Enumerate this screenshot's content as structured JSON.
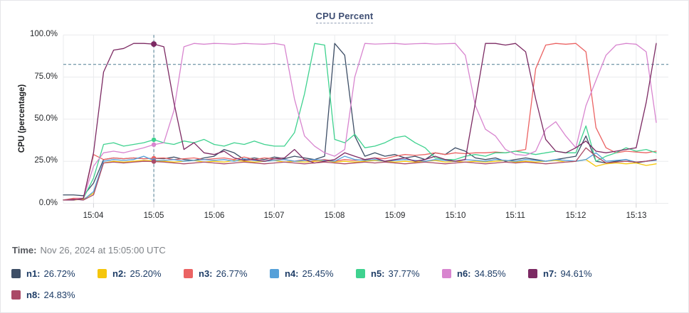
{
  "hover": {
    "label": "Time:",
    "value": "Nov 26, 2024 at 15:05:00 UTC"
  },
  "chart_data": {
    "type": "line",
    "title": "CPU Percent",
    "ylabel": "CPU (percentage)",
    "yticks": [
      "100.0%",
      "75.0%",
      "50.0%",
      "25.0%",
      "0.0%"
    ],
    "ytick_values": [
      100,
      75,
      50,
      25,
      0
    ],
    "xticks": [
      "15:04",
      "15:05",
      "15:06",
      "15:07",
      "15:08",
      "15:09",
      "15:10",
      "15:11",
      "15:12",
      "15:13"
    ],
    "ylim": [
      0,
      100
    ],
    "grid": true,
    "legend_position": "bottom",
    "x_start": "15:03:30",
    "x_end": "15:13:20",
    "x_step_seconds": 10,
    "threshold_percent": 82.5,
    "crosshair": {
      "time_label": "15:05",
      "index": 9
    },
    "series": [
      {
        "name": "n1",
        "hover_label": "n1:",
        "hover_value": "26.72%",
        "color": "#3d4e66",
        "values": [
          5,
          5,
          4.5,
          12,
          26,
          27,
          26.5,
          27,
          26.5,
          26.72,
          26.5,
          27.5,
          26,
          25.5,
          27,
          28,
          32,
          30,
          26,
          27,
          26,
          27.5,
          26.5,
          28,
          27,
          26,
          28,
          95,
          88,
          40,
          28,
          30,
          28,
          29,
          27,
          28,
          26,
          30,
          29,
          33,
          31,
          27,
          26,
          27,
          25,
          26,
          27,
          26,
          25,
          26,
          27,
          28,
          40,
          25,
          24,
          25,
          26,
          24,
          25,
          26
        ]
      },
      {
        "name": "n2",
        "hover_label": "n2:",
        "hover_value": "25.20%",
        "color": "#f5c60c",
        "values": [
          2,
          2,
          2.5,
          6,
          24,
          25,
          24.5,
          25,
          25.5,
          25.2,
          25,
          24.5,
          25,
          25.5,
          24.5,
          25,
          24.5,
          25.5,
          25,
          24.5,
          25,
          25.5,
          24.5,
          25,
          24.5,
          25,
          25.5,
          24.5,
          25,
          24.5,
          25,
          25.5,
          25,
          24.5,
          25,
          24.5,
          25,
          25.5,
          24.5,
          25,
          24.5,
          25,
          24.5,
          25,
          25.5,
          24.5,
          25,
          24.5,
          25,
          25.5,
          24.5,
          25,
          26,
          22,
          23.5,
          24,
          23.5,
          24,
          22.5,
          23.5
        ]
      },
      {
        "name": "n3",
        "hover_label": "n3:",
        "hover_value": "26.77%",
        "color": "#eb6363",
        "values": [
          2,
          3,
          3,
          29,
          26,
          27,
          26.5,
          27,
          26.5,
          26.77,
          27,
          26,
          26.5,
          27,
          26,
          26.5,
          27,
          26,
          27.5,
          26,
          27,
          26.5,
          26,
          25,
          26,
          25.5,
          26,
          25,
          26,
          25.5,
          26,
          27,
          26.5,
          28,
          29,
          28.5,
          29,
          30,
          29,
          30,
          29.5,
          30,
          30,
          30.5,
          30,
          31,
          32,
          80,
          94,
          95,
          94.5,
          95,
          90,
          45,
          33,
          30,
          31,
          30.5,
          30,
          31
        ]
      },
      {
        "name": "n4",
        "hover_label": "n4:",
        "hover_value": "25.45%",
        "color": "#55a0d9",
        "values": [
          2,
          2.5,
          2,
          7,
          25,
          26,
          25.5,
          26,
          28,
          25.45,
          25.5,
          26,
          25,
          25.5,
          26,
          25.5,
          26,
          25,
          26.5,
          25.5,
          25,
          25.5,
          26,
          25,
          25.5,
          26,
          25.5,
          25,
          28,
          26,
          25.5,
          26,
          25,
          25.5,
          26,
          25.5,
          25,
          26,
          25.5,
          25,
          26,
          25.5,
          25,
          26,
          25.5,
          25,
          26,
          25.5,
          25,
          26,
          25.5,
          25,
          26,
          30,
          25,
          25.5,
          26,
          24.5,
          25,
          25.5
        ]
      },
      {
        "name": "n5",
        "hover_label": "n5:",
        "hover_value": "37.77%",
        "color": "#3fd28f",
        "values": [
          2,
          2,
          3,
          15,
          35,
          36,
          34,
          35,
          36,
          37.77,
          36,
          35,
          37,
          36,
          38,
          35,
          34,
          36,
          35,
          37,
          35,
          34,
          34,
          42,
          65,
          95,
          94,
          38,
          36,
          41,
          33,
          34,
          36,
          39,
          40,
          36,
          33,
          27,
          26,
          26,
          28,
          29,
          28,
          30,
          30,
          31,
          30,
          29,
          30,
          31,
          30,
          30,
          46,
          25,
          28,
          30,
          33,
          31,
          32,
          30
        ]
      },
      {
        "name": "n6",
        "hover_label": "n6:",
        "hover_value": "34.85%",
        "color": "#d885cf",
        "values": [
          2,
          2.5,
          3,
          22,
          30,
          31,
          30,
          31.5,
          33,
          34.85,
          36,
          55,
          93,
          95,
          94.5,
          95,
          94.8,
          94.5,
          95,
          94.7,
          94.5,
          95,
          94,
          62,
          40,
          34,
          30,
          28,
          32,
          75,
          95,
          94.6,
          94.8,
          95,
          94.5,
          94.8,
          95,
          94.6,
          94.8,
          95,
          88,
          58,
          44,
          40,
          32,
          29,
          28.5,
          31,
          44,
          48.5,
          40,
          33,
          58,
          73,
          88,
          94,
          95,
          94.5,
          90,
          48
        ]
      },
      {
        "name": "n7",
        "hover_label": "n7:",
        "hover_value": "94.61%",
        "color": "#7c2a63",
        "values": [
          2,
          2,
          3,
          30,
          78,
          91,
          92,
          95,
          95,
          94.61,
          93,
          60,
          32,
          36,
          30,
          29,
          31,
          27,
          25.5,
          26,
          25,
          26.5,
          27,
          32,
          26,
          24,
          25,
          26,
          30,
          28,
          26,
          27,
          25,
          26,
          27,
          25,
          26,
          28,
          26,
          25,
          26,
          60,
          95,
          95,
          94,
          95,
          90,
          62,
          38,
          31,
          30,
          33,
          37,
          31,
          30,
          31,
          32,
          33,
          60,
          95
        ]
      },
      {
        "name": "n8",
        "hover_label": "n8:",
        "hover_value": "24.83%",
        "color": "#aa4a67",
        "values": [
          2,
          2.5,
          2,
          5,
          24,
          24.5,
          24,
          24.5,
          25,
          24.83,
          24.5,
          24,
          23.5,
          24,
          24.5,
          24,
          23.5,
          24,
          24.5,
          24,
          23.5,
          24,
          24.5,
          24,
          23.5,
          24,
          24.5,
          24,
          23.5,
          24,
          24.5,
          24,
          24.5,
          24,
          23.5,
          24,
          24.5,
          24,
          23.5,
          24,
          24.5,
          24,
          23.5,
          24,
          24.5,
          24,
          24.5,
          24,
          23.5,
          24,
          24.5,
          25,
          33,
          28,
          24,
          24.5,
          25,
          24.5,
          25,
          26
        ]
      }
    ]
  }
}
